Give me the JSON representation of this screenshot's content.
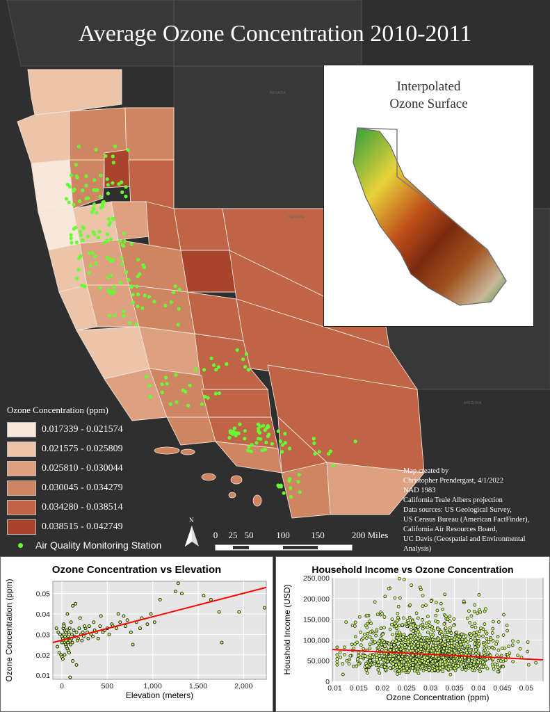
{
  "map": {
    "title": "Average Ozone Concentration 2010-2011",
    "inset_title": "Interpolated\nOzone Surface",
    "state_labels": [
      "NEVADA",
      "NEVADA",
      "ARIZONA"
    ],
    "legend": {
      "title": "Ozone Concentration (ppm)",
      "classes": [
        {
          "label": "0.017339 - 0.021574",
          "color": "#f8e8dc"
        },
        {
          "label": "0.021575 - 0.025809",
          "color": "#ebc4aa"
        },
        {
          "label": "0.025810 - 0.030044",
          "color": "#dda080"
        },
        {
          "label": "0.030045 - 0.034279",
          "color": "#cf8462"
        },
        {
          "label": "0.034280 - 0.038514",
          "color": "#bf6446"
        },
        {
          "label": "0.038515 - 0.042749",
          "color": "#a8432c"
        }
      ],
      "station_label": "Air Quality Monitoring Station",
      "station_color": "#66ff33"
    },
    "north_label": "N",
    "scale_labels": [
      "0",
      "25",
      "50",
      "100",
      "150",
      "200 Miles"
    ],
    "credits": [
      "Map created by",
      "Christopher Prendergast, 4/1/2022",
      "NAD 1983",
      "California Teale Albers projection",
      "Data sources: US Geological Survey,",
      "US Census Bureau (American FactFinder),",
      "California Air Resources Board,",
      "UC Davis (Geospatial and Environmental",
      "Analysis)"
    ]
  },
  "chart_data": [
    {
      "type": "scatter",
      "title": "Ozone Concentration vs Elevation",
      "xlabel": "Elevation (meters)",
      "ylabel": "Ozone Concentration (ppm)",
      "xlim": [
        -100,
        2250
      ],
      "ylim": [
        0.008,
        0.056
      ],
      "xticks": [
        0,
        500,
        1000,
        1500,
        2000
      ],
      "xtick_labels": [
        "0",
        "500",
        "1,000",
        "1,500",
        "2,000"
      ],
      "yticks": [
        0.01,
        0.02,
        0.03,
        0.04,
        0.05
      ],
      "ytick_labels": [
        "0.01",
        "0.02",
        "0.03",
        "0.04",
        "0.05"
      ],
      "grid": true,
      "trendline": {
        "x": [
          -100,
          2250
        ],
        "y": [
          0.026,
          0.053
        ],
        "color": "#ff0000"
      },
      "point_color": "#ccff66",
      "points": [
        [
          1280,
          0.055
        ],
        [
          1250,
          0.051
        ],
        [
          1320,
          0.05
        ],
        [
          1560,
          0.049
        ],
        [
          1080,
          0.047
        ],
        [
          1640,
          0.047
        ],
        [
          2230,
          0.043
        ],
        [
          1950,
          0.041
        ],
        [
          1730,
          0.041
        ],
        [
          1760,
          0.026
        ],
        [
          780,
          0.025
        ],
        [
          500,
          0.033
        ],
        [
          550,
          0.035
        ],
        [
          620,
          0.04
        ],
        [
          680,
          0.039
        ],
        [
          720,
          0.037
        ],
        [
          820,
          0.036
        ],
        [
          880,
          0.038
        ],
        [
          940,
          0.035
        ],
        [
          980,
          0.04
        ],
        [
          430,
          0.039
        ],
        [
          350,
          0.036
        ],
        [
          300,
          0.034
        ],
        [
          260,
          0.033
        ],
        [
          400,
          0.028
        ],
        [
          150,
          0.045
        ],
        [
          120,
          0.044
        ],
        [
          200,
          0.038
        ],
        [
          60,
          0.04
        ],
        [
          100,
          0.036
        ],
        [
          20,
          0.035
        ],
        [
          -60,
          0.033
        ],
        [
          -40,
          0.031
        ],
        [
          -20,
          0.03
        ],
        [
          0,
          0.029
        ],
        [
          10,
          0.028
        ],
        [
          20,
          0.027
        ],
        [
          30,
          0.026
        ],
        [
          40,
          0.025
        ],
        [
          50,
          0.024
        ],
        [
          60,
          0.023
        ],
        [
          70,
          0.022
        ],
        [
          80,
          0.021
        ],
        [
          -10,
          0.02
        ],
        [
          0,
          0.019
        ],
        [
          10,
          0.018
        ],
        [
          20,
          0.03
        ],
        [
          30,
          0.032
        ],
        [
          40,
          0.031
        ],
        [
          50,
          0.03
        ],
        [
          70,
          0.029
        ],
        [
          80,
          0.028
        ],
        [
          90,
          0.027
        ],
        [
          110,
          0.03
        ],
        [
          130,
          0.032
        ],
        [
          160,
          0.031
        ],
        [
          180,
          0.028
        ],
        [
          220,
          0.027
        ],
        [
          240,
          0.029
        ],
        [
          280,
          0.031
        ],
        [
          320,
          0.03
        ],
        [
          360,
          0.032
        ],
        [
          450,
          0.031
        ],
        [
          520,
          0.03
        ],
        [
          600,
          0.033
        ],
        [
          700,
          0.034
        ],
        [
          160,
          0.015
        ],
        [
          120,
          0.017
        ],
        [
          90,
          0.009
        ],
        [
          30,
          0.02
        ],
        [
          -30,
          0.021
        ],
        [
          -50,
          0.024
        ],
        [
          0,
          0.026
        ],
        [
          15,
          0.033
        ],
        [
          25,
          0.034
        ],
        [
          35,
          0.029
        ],
        [
          45,
          0.027
        ],
        [
          55,
          0.032
        ],
        [
          65,
          0.026
        ],
        [
          75,
          0.031
        ],
        [
          85,
          0.033
        ],
        [
          95,
          0.025
        ],
        [
          105,
          0.028
        ],
        [
          115,
          0.026
        ],
        [
          140,
          0.029
        ],
        [
          170,
          0.027
        ],
        [
          190,
          0.033
        ],
        [
          210,
          0.03
        ],
        [
          230,
          0.031
        ],
        [
          250,
          0.034
        ],
        [
          290,
          0.028
        ],
        [
          340,
          0.029
        ],
        [
          380,
          0.031
        ],
        [
          420,
          0.034
        ],
        [
          470,
          0.032
        ],
        [
          560,
          0.034
        ],
        [
          640,
          0.036
        ],
        [
          760,
          0.031
        ],
        [
          860,
          0.033
        ],
        [
          1020,
          0.036
        ]
      ]
    },
    {
      "type": "scatter",
      "title": "Household Income vs Ozone Concentration",
      "xlabel": "Ozone Concentration (ppm)",
      "ylabel": "Houshold Income (USD)",
      "xlim": [
        0.0095,
        0.0535
      ],
      "ylim": [
        0,
        250000
      ],
      "xticks": [
        0.01,
        0.015,
        0.02,
        0.025,
        0.03,
        0.035,
        0.04,
        0.045,
        0.05
      ],
      "xtick_labels": [
        "0.01",
        "0.015",
        "0.02",
        "0.025",
        "0.03",
        "0.035",
        "0.04",
        "0.045",
        "0.05"
      ],
      "yticks": [
        0,
        50000,
        100000,
        150000,
        200000,
        250000
      ],
      "ytick_labels": [
        "0",
        "50,000",
        "100,000",
        "150,000",
        "200,000",
        "250,000"
      ],
      "grid": true,
      "trendline": {
        "x": [
          0.0095,
          0.0535
        ],
        "y": [
          77000,
          52000
        ],
        "color": "#ff0000"
      },
      "point_color": "#ccff66",
      "distribution": {
        "n": 1400,
        "x_mean": 0.029,
        "x_sd": 0.0075,
        "y_median": 65000,
        "y_spread": 0.45,
        "y_max": 250000
      },
      "points": [
        [
          0.0235,
          248000
        ],
        [
          0.0245,
          246000
        ],
        [
          0.026,
          232000
        ],
        [
          0.0215,
          225000
        ],
        [
          0.028,
          222000
        ],
        [
          0.033,
          210000
        ],
        [
          0.0205,
          205000
        ],
        [
          0.037,
          190000
        ],
        [
          0.0415,
          175000
        ],
        [
          0.0125,
          50000
        ],
        [
          0.0135,
          62000
        ],
        [
          0.015,
          70000
        ],
        [
          0.016,
          55000
        ],
        [
          0.0505,
          40000
        ],
        [
          0.052,
          45000
        ],
        [
          0.049,
          58000
        ],
        [
          0.0465,
          68000
        ],
        [
          0.0455,
          80000
        ],
        [
          0.0105,
          48000
        ],
        [
          0.0112,
          58000
        ]
      ]
    }
  ]
}
